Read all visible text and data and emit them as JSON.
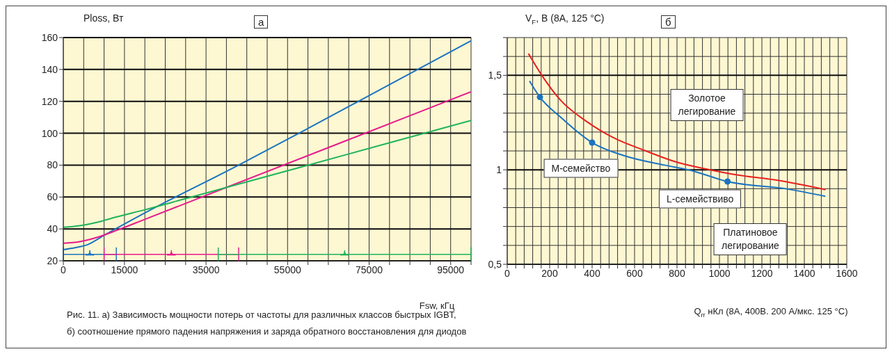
{
  "chart_data": [
    {
      "type": "line",
      "title": "а",
      "xlabel": "Fsw, кГц",
      "ylabel": "Ploss, Вт",
      "xlim": [
        0,
        100000
      ],
      "xticks": [
        0,
        {
          "value": 5000,
          "label": null
        },
        {
          "value": 10000,
          "label": null
        },
        15000,
        {
          "value": 20000,
          "label": null
        },
        {
          "value": 25000,
          "label": null
        },
        {
          "value": 30000,
          "label": null
        },
        35000,
        {
          "value": 40000,
          "label": null
        },
        {
          "value": 45000,
          "label": null
        },
        {
          "value": 50000,
          "label": null
        },
        55000,
        {
          "value": 60000,
          "label": null
        },
        {
          "value": 65000,
          "label": null
        },
        {
          "value": 70000,
          "label": null
        },
        75000,
        {
          "value": 80000,
          "label": null
        },
        {
          "value": 85000,
          "label": null
        },
        {
          "value": 90000,
          "label": null
        },
        95000,
        {
          "value": 100000,
          "label": null
        }
      ],
      "ylim": [
        20,
        160
      ],
      "yticks": [
        20,
        40,
        60,
        80,
        100,
        120,
        140,
        160
      ],
      "grid": true,
      "marker": "none",
      "line_style": "solid",
      "series": [
        {
          "color": "#1a73c0",
          "x": [
            0,
            3000,
            5800,
            10000,
            20000,
            43000,
            60000,
            80000,
            100000
          ],
          "values": [
            27,
            28.3,
            30,
            36,
            50,
            80,
            103,
            130.5,
            158
          ]
        },
        {
          "color": "#e6198c",
          "x": [
            0,
            4000,
            8000,
            13000,
            20000,
            40000,
            70000,
            100000
          ],
          "values": [
            31,
            32,
            34.5,
            39,
            46,
            66,
            96,
            126
          ]
        },
        {
          "color": "#1fb35a",
          "x": [
            0,
            4000,
            8000,
            13000,
            20000,
            30000,
            40000,
            60000,
            80000,
            100000
          ],
          "values": [
            41,
            42,
            44,
            47.5,
            52,
            59,
            66,
            80,
            94,
            108
          ]
        },
        {
          "type": "scatter",
          "marker": "triangle",
          "color": "#1a73c0",
          "x": [
            6500
          ],
          "values": [
            24
          ],
          "xerrors": [
            6500
          ]
        },
        {
          "type": "scatter",
          "marker": "triangle",
          "color": "#e6198c",
          "x": [
            26500
          ],
          "values": [
            24
          ],
          "xerrors": [
            16500
          ]
        },
        {
          "type": "scatter",
          "marker": "triangle",
          "color": "#1fb35a",
          "x": [
            69000
          ],
          "values": [
            24
          ],
          "xerrors": [
            31000
          ]
        }
      ],
      "annotations": [
        "Рис. 11. а) Зависимость мощности потерь от частоты для различных классов быстрых IGBT,",
        "б) соотношение прямого падения напряжения и заряда обратного восстановления для диодов"
      ]
    },
    {
      "type": "line",
      "title": "б",
      "xlabel": "Q$_{rr}$ нКл (8А, 400В. 200 А/мкс. 125 °C)",
      "ylabel": "V$_{F}$, В (8А, 125 °C)",
      "xlim": [
        0,
        1600
      ],
      "xticks": [
        0,
        {
          "value": 40,
          "label": null
        },
        {
          "value": 80,
          "label": null
        },
        {
          "value": 120,
          "label": null
        },
        {
          "value": 160,
          "label": null
        },
        200,
        {
          "value": 240,
          "label": null
        },
        {
          "value": 280,
          "label": null
        },
        {
          "value": 320,
          "label": null
        },
        {
          "value": 360,
          "label": null
        },
        400,
        {
          "value": 440,
          "label": null
        },
        {
          "value": 480,
          "label": null
        },
        {
          "value": 520,
          "label": null
        },
        {
          "value": 560,
          "label": null
        },
        600,
        {
          "value": 640,
          "label": null
        },
        {
          "value": 680,
          "label": null
        },
        {
          "value": 720,
          "label": null
        },
        {
          "value": 760,
          "label": null
        },
        800,
        {
          "value": 840,
          "label": null
        },
        {
          "value": 880,
          "label": null
        },
        {
          "value": 920,
          "label": null
        },
        {
          "value": 960,
          "label": null
        },
        1000,
        {
          "value": 1040,
          "label": null
        },
        {
          "value": 1080,
          "label": null
        },
        {
          "value": 1120,
          "label": null
        },
        {
          "value": 1160,
          "label": null
        },
        1200,
        {
          "value": 1240,
          "label": null
        },
        {
          "value": 1280,
          "label": null
        },
        {
          "value": 1320,
          "label": null
        },
        {
          "value": 1360,
          "label": null
        },
        1400,
        {
          "value": 1440,
          "label": null
        },
        {
          "value": 1480,
          "label": null
        },
        {
          "value": 1520,
          "label": null
        },
        {
          "value": 1560,
          "label": null
        },
        1600
      ],
      "ylim": [
        0.5,
        1.7
      ],
      "yticks": [
        {
          "value": 0.5,
          "label": "0,5"
        },
        {
          "value": 0.6,
          "label": null
        },
        {
          "value": 0.7,
          "label": null
        },
        {
          "value": 0.8,
          "label": null
        },
        {
          "value": 0.9,
          "label": null
        },
        1,
        {
          "value": 1.1,
          "label": null
        },
        {
          "value": 1.2,
          "label": null
        },
        {
          "value": 1.3,
          "label": null
        },
        {
          "value": 1.4,
          "label": null
        },
        {
          "value": 1.5,
          "label": "1,5"
        },
        {
          "value": 1.6,
          "label": null
        },
        {
          "value": 1.7,
          "label": null
        }
      ],
      "grid": true,
      "marker": "none",
      "line_style": "solid",
      "series": [
        {
          "color": "#e8211d",
          "x": [
            100,
            163,
            250,
            375,
            500,
            653,
            800,
            956,
            1100,
            1259,
            1500
          ],
          "values": [
            1.615,
            1.5,
            1.37,
            1.255,
            1.17,
            1.1,
            1.04,
            1.0,
            0.97,
            0.947,
            0.895
          ]
        },
        {
          "color": "#1a73c0",
          "x": [
            105,
            154,
            250,
            400,
            550,
            741,
            855,
            1038,
            1321,
            1499
          ],
          "values": [
            1.47,
            1.385,
            1.28,
            1.144,
            1.075,
            1.025,
            1.0,
            0.938,
            0.898,
            0.86
          ]
        },
        {
          "type": "scatter",
          "color": "#1a73c0",
          "x": [
            154,
            400,
            1038
          ],
          "values": [
            1.385,
            1.144,
            0.938
          ],
          "marker": "circle"
        }
      ],
      "annotations": [
        "Золотое\nлегирование",
        "М-семейство",
        "L-семействиво",
        "Платиновое\nлегирование"
      ]
    }
  ]
}
